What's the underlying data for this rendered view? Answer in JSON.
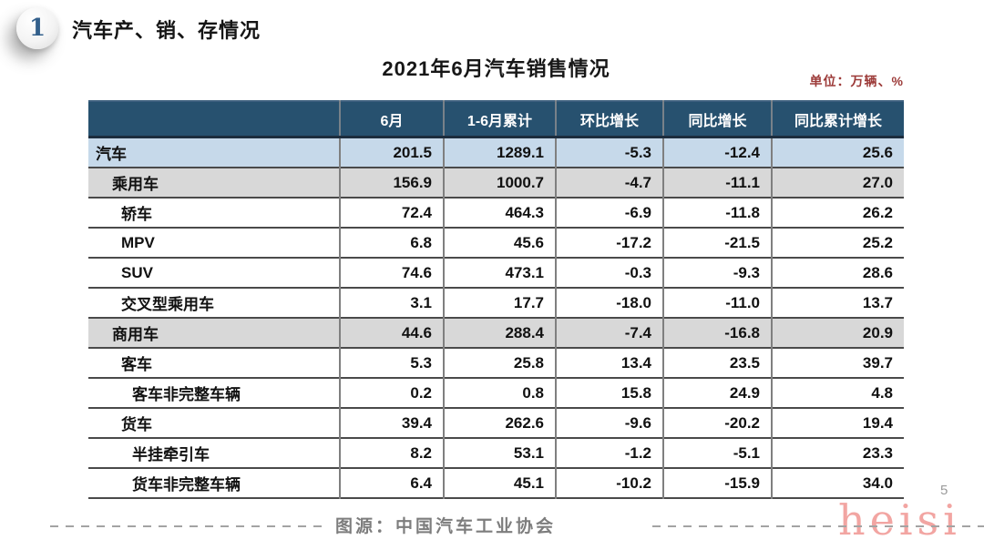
{
  "slide": {
    "section_number": "1",
    "section_title": "汽车产、销、存情况",
    "table_title": "2021年6月汽车销售情况",
    "unit_label": "单位：万辆、%",
    "source_label": "图源：中国汽车工业协会",
    "page_number": "5",
    "watermark": "heisi"
  },
  "colors": {
    "header_bg": "#27516f",
    "header_text": "#ffffff",
    "row_blue": "#c6d9ea",
    "row_gray": "#d8d8d8",
    "row_white": "#ffffff",
    "unit_text": "#9c3a38",
    "grid_line": "#4a4a4a",
    "watermark_pink": "#f2a5a2"
  },
  "chart_data": {
    "type": "table",
    "title": "2021年6月汽车销售情况",
    "unit": "万辆、%",
    "columns": [
      "",
      "6月",
      "1-6月累计",
      "环比增长",
      "同比增长",
      "同比累计增长"
    ],
    "rows": [
      {
        "label": "汽车",
        "indent": 0,
        "style": "blue",
        "values": [
          "201.5",
          "1289.1",
          "-5.3",
          "-12.4",
          "25.6"
        ]
      },
      {
        "label": "乘用车",
        "indent": 1,
        "style": "gray",
        "values": [
          "156.9",
          "1000.7",
          "-4.7",
          "-11.1",
          "27.0"
        ]
      },
      {
        "label": "轿车",
        "indent": 2,
        "style": "white",
        "values": [
          "72.4",
          "464.3",
          "-6.9",
          "-11.8",
          "26.2"
        ]
      },
      {
        "label": "MPV",
        "indent": 2,
        "style": "white",
        "values": [
          "6.8",
          "45.6",
          "-17.2",
          "-21.5",
          "25.2"
        ]
      },
      {
        "label": "SUV",
        "indent": 2,
        "style": "white",
        "values": [
          "74.6",
          "473.1",
          "-0.3",
          "-9.3",
          "28.6"
        ]
      },
      {
        "label": "交叉型乘用车",
        "indent": 2,
        "style": "white",
        "values": [
          "3.1",
          "17.7",
          "-18.0",
          "-11.0",
          "13.7"
        ]
      },
      {
        "label": "商用车",
        "indent": 1,
        "style": "gray",
        "values": [
          "44.6",
          "288.4",
          "-7.4",
          "-16.8",
          "20.9"
        ]
      },
      {
        "label": "客车",
        "indent": 2,
        "style": "white",
        "values": [
          "5.3",
          "25.8",
          "13.4",
          "23.5",
          "39.7"
        ]
      },
      {
        "label": "客车非完整车辆",
        "indent": 3,
        "style": "white",
        "values": [
          "0.2",
          "0.8",
          "15.8",
          "24.9",
          "4.8"
        ]
      },
      {
        "label": "货车",
        "indent": 2,
        "style": "white",
        "values": [
          "39.4",
          "262.6",
          "-9.6",
          "-20.2",
          "19.4"
        ]
      },
      {
        "label": "半挂牵引车",
        "indent": 3,
        "style": "white",
        "values": [
          "8.2",
          "53.1",
          "-1.2",
          "-5.1",
          "23.3"
        ]
      },
      {
        "label": "货车非完整车辆",
        "indent": 3,
        "style": "white",
        "values": [
          "6.4",
          "45.1",
          "-10.2",
          "-15.9",
          "34.0"
        ]
      }
    ]
  }
}
